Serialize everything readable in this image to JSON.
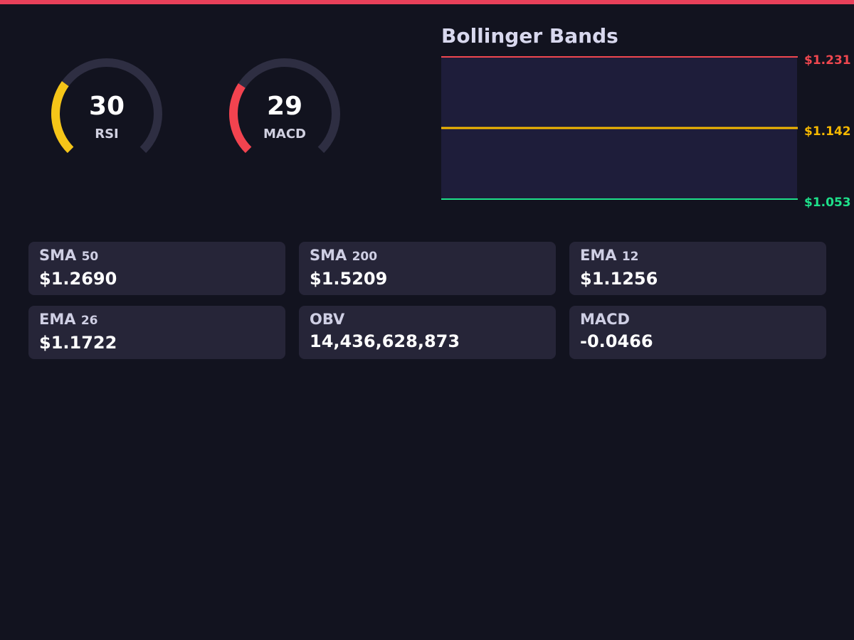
{
  "gauges": [
    {
      "value": 30,
      "label": "RSI",
      "range": [
        0,
        100
      ],
      "color": "#f5c518"
    },
    {
      "value": 29,
      "label": "MACD",
      "range": [
        0,
        100
      ],
      "color": "#f2434f"
    }
  ],
  "bollinger": {
    "title": "Bollinger Bands",
    "bands": [
      {
        "value": 1.231,
        "label": "$1.231",
        "color": "#f0474f"
      },
      {
        "value": 1.142,
        "label": "$1.142",
        "color": "#f5b800"
      },
      {
        "value": 1.053,
        "label": "$1.053",
        "color": "#1ee08a"
      }
    ]
  },
  "cards": [
    {
      "name": "SMA",
      "period": "50",
      "value": "$1.2690"
    },
    {
      "name": "SMA",
      "period": "200",
      "value": "$1.5209"
    },
    {
      "name": "EMA",
      "period": "12",
      "value": "$1.1256"
    },
    {
      "name": "EMA",
      "period": "26",
      "value": "$1.1722"
    },
    {
      "name": "OBV",
      "value": "14,436,628,873"
    },
    {
      "name": "MACD",
      "value": "-0.0466"
    }
  ]
}
